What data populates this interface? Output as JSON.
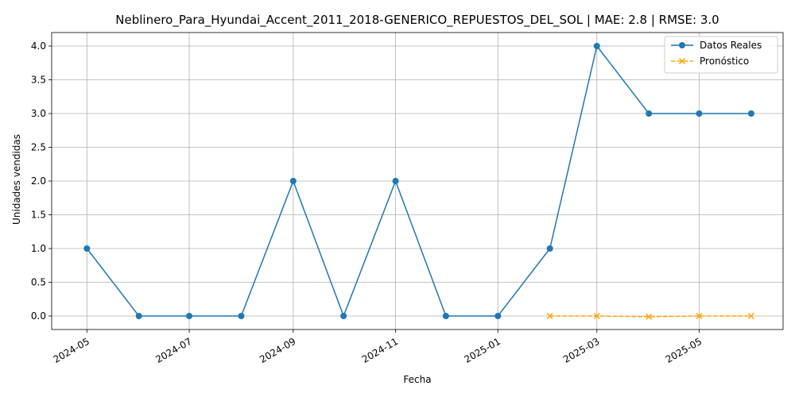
{
  "chart_data": {
    "type": "line",
    "title": "Neblinero_Para_Hyundai_Accent_2011_2018-GENERICO_REPUESTOS_DEL_SOL | MAE: 2.8 | RMSE: 3.0",
    "xlabel": "Fecha",
    "ylabel": "Unidades vendidas",
    "x_axis_type": "date",
    "xlim": [
      "2024-04-10",
      "2025-06-20"
    ],
    "ylim": [
      -0.2,
      4.2
    ],
    "x_ticks": [
      "2024-05",
      "2024-07",
      "2024-09",
      "2024-11",
      "2025-01",
      "2025-03",
      "2025-05"
    ],
    "y_ticks": [
      "0.0",
      "0.5",
      "1.0",
      "1.5",
      "2.0",
      "2.5",
      "3.0",
      "3.5",
      "4.0"
    ],
    "grid": true,
    "legend_position": "top-right",
    "series": [
      {
        "name": "Datos Reales",
        "color": "#1f77b4",
        "line_style": "solid",
        "marker": "circle",
        "x": [
          "2024-05-01",
          "2024-06-01",
          "2024-07-01",
          "2024-08-01",
          "2024-09-01",
          "2024-10-01",
          "2024-11-01",
          "2024-12-01",
          "2025-01-01",
          "2025-02-01",
          "2025-03-01",
          "2025-04-01",
          "2025-05-01",
          "2025-06-01"
        ],
        "y": [
          1,
          0,
          0,
          0,
          2,
          0,
          2,
          0,
          0,
          1,
          4,
          3,
          3,
          3
        ]
      },
      {
        "name": "Pronóstico",
        "color": "#ffa500",
        "line_style": "dashed",
        "marker": "x",
        "x": [
          "2025-02-01",
          "2025-03-01",
          "2025-04-01",
          "2025-05-01",
          "2025-06-01"
        ],
        "y": [
          0.0,
          0.0,
          -0.01,
          0.0,
          0.0
        ]
      }
    ]
  }
}
